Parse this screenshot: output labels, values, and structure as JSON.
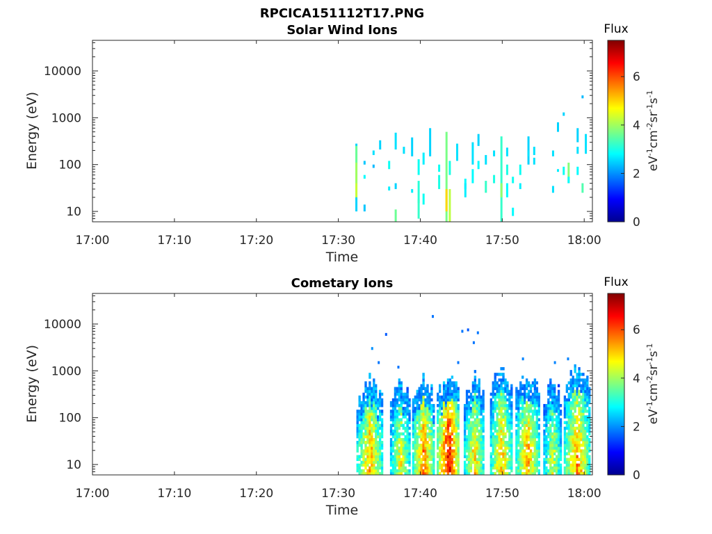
{
  "figure_title": "RPCICA151112T17.PNG",
  "chart_data": [
    {
      "type": "heatmap",
      "title": "Solar Wind Ions",
      "xlabel": "Time",
      "ylabel": "Energy (eV)",
      "x_ticks": [
        "17:00",
        "17:10",
        "17:20",
        "17:30",
        "17:40",
        "17:50",
        "18:00"
      ],
      "xlim_minutes": [
        0,
        61
      ],
      "y_scale": "log",
      "y_ticks": [
        "10",
        "100",
        "1000",
        "10000"
      ],
      "ylim": [
        6,
        45000
      ],
      "grid": false,
      "colorbar": {
        "title": "Flux",
        "label": "eV-1cm-2sr-1s-1",
        "range": [
          0,
          7.5
        ],
        "ticks": [
          "0",
          "2",
          "4",
          "6"
        ],
        "colormap": "jet"
      },
      "columns": [
        {
          "t": 32.2,
          "cells": [
            [
              10,
              280,
              2.5
            ],
            [
              100,
              250,
              3.6
            ],
            [
              40,
              110,
              4.0
            ],
            [
              20,
              40,
              4.3
            ]
          ]
        },
        {
          "t": 33.2,
          "cells": [
            [
              10,
              14,
              2.4
            ],
            [
              50,
              60,
              2.8
            ],
            [
              100,
              120,
              2.4
            ]
          ]
        },
        {
          "t": 34.3,
          "cells": [
            [
              160,
              200,
              2.6
            ],
            [
              85,
              100,
              2.3
            ]
          ]
        },
        {
          "t": 35.1,
          "cells": [
            [
              210,
              330,
              2.5
            ]
          ]
        },
        {
          "t": 36.2,
          "cells": [
            [
              80,
              120,
              2.9
            ],
            [
              28,
              34,
              2.7
            ]
          ]
        },
        {
          "t": 37.0,
          "cells": [
            [
              210,
              480,
              2.6
            ],
            [
              30,
              40,
              2.5
            ],
            [
              6,
              11,
              3.6
            ]
          ]
        },
        {
          "t": 38.0,
          "cells": [
            [
              170,
              240,
              2.6
            ]
          ]
        },
        {
          "t": 39.0,
          "cells": [
            [
              150,
              380,
              2.5
            ],
            [
              25,
              30,
              2.7
            ]
          ]
        },
        {
          "t": 39.8,
          "cells": [
            [
              60,
              130,
              2.9
            ],
            [
              15,
              45,
              3.1
            ],
            [
              7,
              18,
              3.2
            ]
          ]
        },
        {
          "t": 40.4,
          "cells": [
            [
              100,
              180,
              2.7
            ],
            [
              14,
              24,
              2.9
            ]
          ]
        },
        {
          "t": 41.2,
          "cells": [
            [
              150,
              600,
              2.5
            ]
          ]
        },
        {
          "t": 42.3,
          "cells": [
            [
              70,
              100,
              2.9
            ],
            [
              30,
              60,
              3.0
            ]
          ]
        },
        {
          "t": 43.2,
          "cells": [
            [
              6,
              500,
              3.7
            ],
            [
              10,
              30,
              5.0
            ]
          ]
        },
        {
          "t": 43.6,
          "cells": [
            [
              6,
              30,
              4.2
            ],
            [
              60,
              120,
              3.0
            ]
          ]
        },
        {
          "t": 44.5,
          "cells": [
            [
              120,
              280,
              2.6
            ]
          ]
        },
        {
          "t": 45.5,
          "cells": [
            [
              30,
              50,
              2.8
            ],
            [
              20,
              40,
              2.7
            ]
          ]
        },
        {
          "t": 46.4,
          "cells": [
            [
              100,
              300,
              2.6
            ],
            [
              40,
              80,
              2.8
            ]
          ]
        },
        {
          "t": 47.1,
          "cells": [
            [
              250,
              450,
              2.5
            ],
            [
              80,
              120,
              2.8
            ]
          ]
        },
        {
          "t": 48.0,
          "cells": [
            [
              25,
              45,
              3.2
            ],
            [
              100,
              160,
              2.6
            ]
          ]
        },
        {
          "t": 49.0,
          "cells": [
            [
              40,
              60,
              3.0
            ],
            [
              150,
              200,
              2.6
            ]
          ]
        },
        {
          "t": 49.9,
          "cells": [
            [
              6,
              400,
              3.2
            ],
            [
              20,
              40,
              3.9
            ]
          ]
        },
        {
          "t": 50.6,
          "cells": [
            [
              60,
              100,
              3.0
            ],
            [
              20,
              40,
              2.8
            ],
            [
              150,
              230,
              2.6
            ]
          ]
        },
        {
          "t": 51.3,
          "cells": [
            [
              8,
              12,
              2.8
            ],
            [
              40,
              55,
              2.9
            ]
          ]
        },
        {
          "t": 52.2,
          "cells": [
            [
              60,
              100,
              2.9
            ],
            [
              30,
              40,
              2.7
            ]
          ]
        },
        {
          "t": 53.2,
          "cells": [
            [
              100,
              400,
              2.5
            ],
            [
              150,
              200,
              2.6
            ]
          ]
        },
        {
          "t": 53.9,
          "cells": [
            [
              160,
              240,
              2.6
            ],
            [
              100,
              140,
              2.6
            ]
          ]
        },
        {
          "t": 56.2,
          "cells": [
            [
              150,
              200,
              2.6
            ],
            [
              25,
              35,
              2.6
            ]
          ]
        },
        {
          "t": 56.8,
          "cells": [
            [
              70,
              80,
              2.7
            ],
            [
              500,
              800,
              2.5
            ]
          ]
        },
        {
          "t": 57.5,
          "cells": [
            [
              1100,
              1300,
              2.5
            ],
            [
              60,
              90,
              2.9
            ]
          ]
        },
        {
          "t": 58.1,
          "cells": [
            [
              40,
              110,
              3.8
            ],
            [
              40,
              55,
              2.8
            ]
          ]
        },
        {
          "t": 59.2,
          "cells": [
            [
              300,
              600,
              2.5
            ],
            [
              170,
              240,
              2.6
            ],
            [
              60,
              90,
              2.8
            ]
          ]
        },
        {
          "t": 59.8,
          "cells": [
            [
              25,
              40,
              3.4
            ],
            [
              2600,
              3000,
              2.3
            ]
          ]
        },
        {
          "t": 60.2,
          "cells": [
            [
              170,
              450,
              2.6
            ]
          ]
        }
      ]
    },
    {
      "type": "heatmap",
      "title": "Cometary Ions",
      "xlabel": "Time",
      "ylabel": "Energy (eV)",
      "x_ticks": [
        "17:00",
        "17:10",
        "17:20",
        "17:30",
        "17:40",
        "17:50",
        "18:00"
      ],
      "xlim_minutes": [
        0,
        61
      ],
      "y_scale": "log",
      "y_ticks": [
        "10",
        "100",
        "1000",
        "10000"
      ],
      "ylim": [
        6,
        45000
      ],
      "grid": false,
      "colorbar": {
        "title": "Flux",
        "label": "eV-1cm-2sr-1s-1",
        "range": [
          0,
          7.5
        ],
        "ticks": [
          "0",
          "2",
          "4",
          "6"
        ],
        "colormap": "jet"
      },
      "bursts": [
        {
          "t0": 32.2,
          "t1": 35.3,
          "top": 700,
          "peak": 5.2
        },
        {
          "t0": 36.3,
          "t1": 38.7,
          "top": 600,
          "peak": 4.6
        },
        {
          "t0": 39.0,
          "t1": 41.6,
          "top": 800,
          "peak": 5.6
        },
        {
          "t0": 42.0,
          "t1": 44.7,
          "top": 900,
          "peak": 6.6
        },
        {
          "t0": 45.3,
          "t1": 47.7,
          "top": 800,
          "peak": 5.0
        },
        {
          "t0": 48.5,
          "t1": 51.1,
          "top": 1200,
          "peak": 5.2
        },
        {
          "t0": 51.6,
          "t1": 54.4,
          "top": 1100,
          "peak": 5.3
        },
        {
          "t0": 55.0,
          "t1": 57.1,
          "top": 700,
          "peak": 4.4
        },
        {
          "t0": 57.5,
          "t1": 60.6,
          "top": 1300,
          "peak": 5.5
        }
      ],
      "scattered_points": [
        {
          "t": 34.0,
          "e": 3000,
          "v": 2.0
        },
        {
          "t": 34.8,
          "e": 1500,
          "v": 1.8
        },
        {
          "t": 35.7,
          "e": 6000,
          "v": 1.6
        },
        {
          "t": 37.2,
          "e": 1200,
          "v": 1.8
        },
        {
          "t": 41.4,
          "e": 14500,
          "v": 1.8
        },
        {
          "t": 44.5,
          "e": 1500,
          "v": 1.8
        },
        {
          "t": 45.0,
          "e": 7000,
          "v": 1.8
        },
        {
          "t": 45.7,
          "e": 7500,
          "v": 1.6
        },
        {
          "t": 46.4,
          "e": 4000,
          "v": 1.8
        },
        {
          "t": 46.9,
          "e": 6500,
          "v": 1.8
        },
        {
          "t": 52.4,
          "e": 1800,
          "v": 1.9
        },
        {
          "t": 56.3,
          "e": 1500,
          "v": 1.9
        },
        {
          "t": 57.9,
          "e": 1800,
          "v": 1.9
        }
      ]
    }
  ]
}
